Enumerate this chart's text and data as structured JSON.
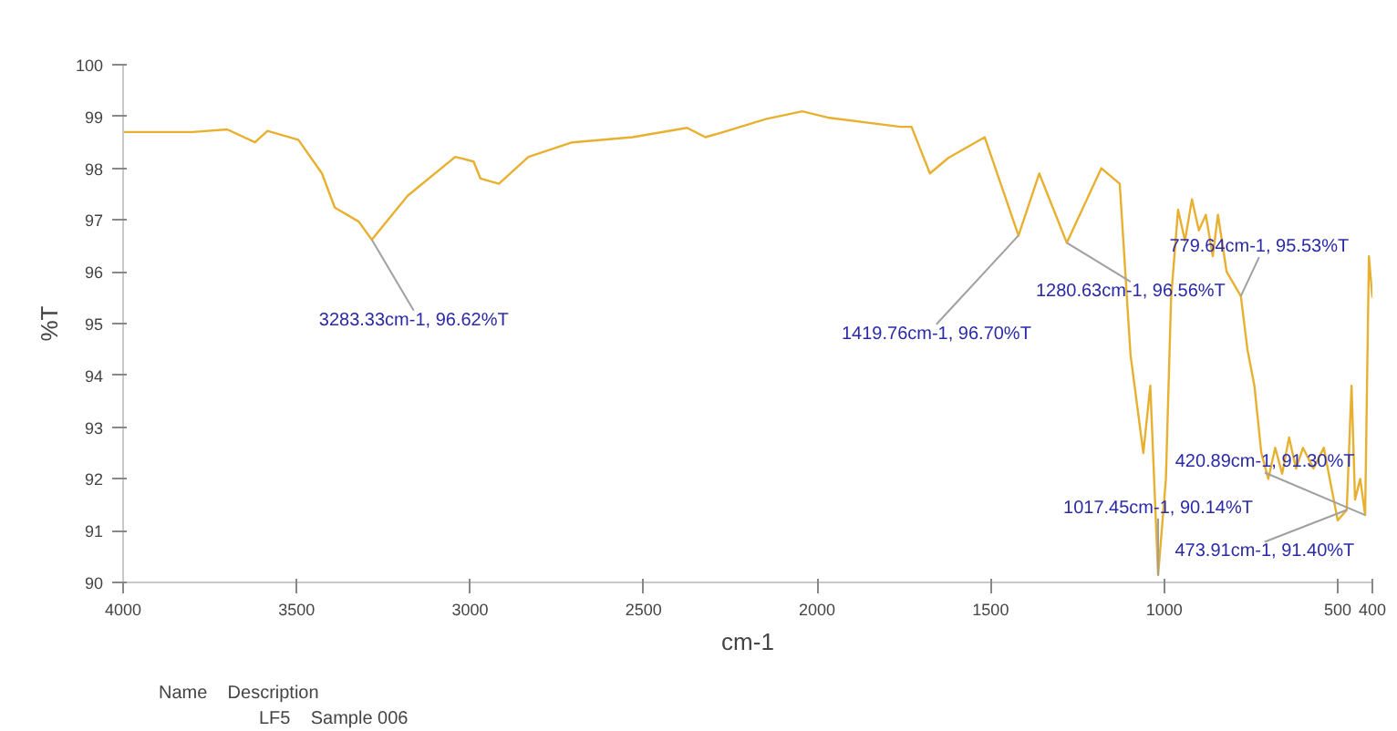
{
  "chart_data": {
    "type": "line",
    "xlabel": "cm-1",
    "ylabel": "%T",
    "xlim": [
      4000,
      400
    ],
    "xticks": [
      4000,
      3500,
      3000,
      2500,
      2000,
      1500,
      1000,
      500,
      400
    ],
    "ylim": [
      90,
      100
    ],
    "yticks": [
      90,
      91,
      92,
      93,
      94,
      95,
      96,
      97,
      98,
      99,
      100
    ],
    "grid": false,
    "legend": "bottom left",
    "legend_title": "Name    Description",
    "series": [
      {
        "name": "LF5    Sample 006",
        "color": "#e8b030",
        "x": [
          4000,
          3900,
          3800,
          3700,
          3620,
          3584,
          3495,
          3427,
          3390,
          3321,
          3283.33,
          3180,
          3043,
          2990,
          2970,
          2917,
          2832,
          2706,
          2532,
          2375,
          2322,
          2270,
          2148,
          2043,
          1970,
          1760,
          1728,
          1675,
          1622,
          1517,
          1419.76,
          1360,
          1280.63,
          1181,
          1128,
          1097,
          1060,
          1040,
          1017.45,
          995,
          980,
          960,
          940,
          920,
          900,
          880,
          860,
          845,
          820,
          779,
          760,
          740,
          720,
          700,
          680,
          660,
          640,
          620,
          600,
          570,
          540,
          520,
          500,
          473.91,
          460,
          450,
          435,
          420.89,
          410,
          400
        ],
        "values": [
          98.7,
          98.7,
          98.7,
          98.75,
          98.5,
          98.72,
          98.55,
          97.9,
          97.24,
          96.97,
          96.62,
          97.47,
          98.22,
          98.13,
          97.8,
          97.7,
          98.22,
          98.5,
          98.6,
          98.78,
          98.6,
          98.7,
          98.95,
          99.1,
          98.98,
          98.8,
          98.8,
          97.9,
          98.2,
          98.6,
          96.7,
          97.9,
          96.56,
          98.0,
          97.7,
          94.4,
          92.5,
          93.8,
          90.14,
          92.0,
          95.5,
          97.2,
          96.6,
          97.4,
          96.8,
          97.1,
          96.3,
          97.1,
          96.0,
          95.53,
          94.5,
          93.8,
          92.5,
          92.0,
          92.6,
          92.1,
          92.8,
          92.2,
          92.6,
          92.2,
          92.6,
          91.9,
          91.2,
          91.4,
          93.8,
          91.6,
          92.0,
          91.3,
          96.3,
          95.5
        ]
      }
    ],
    "annotations": [
      {
        "text": "3283.33cm-1, 96.62%T",
        "x": 3283.33,
        "y": 96.62
      },
      {
        "text": "1280.63cm-1, 96.56%T",
        "x": 1280.63,
        "y": 96.56
      },
      {
        "text": "1419.76cm-1, 96.70%T",
        "x": 1419.76,
        "y": 96.7
      },
      {
        "text": "779.64cm-1, 95.53%T",
        "x": 779,
        "y": 95.53
      },
      {
        "text": "1017.45cm-1, 90.14%T",
        "x": 1017.45,
        "y": 90.14
      },
      {
        "text": "473.91cm-1, 91.40%T",
        "x": 473.91,
        "y": 91.4
      },
      {
        "text": "420.89cm-1, 91.30%T",
        "x": 420.89,
        "y": 91.3
      }
    ]
  }
}
